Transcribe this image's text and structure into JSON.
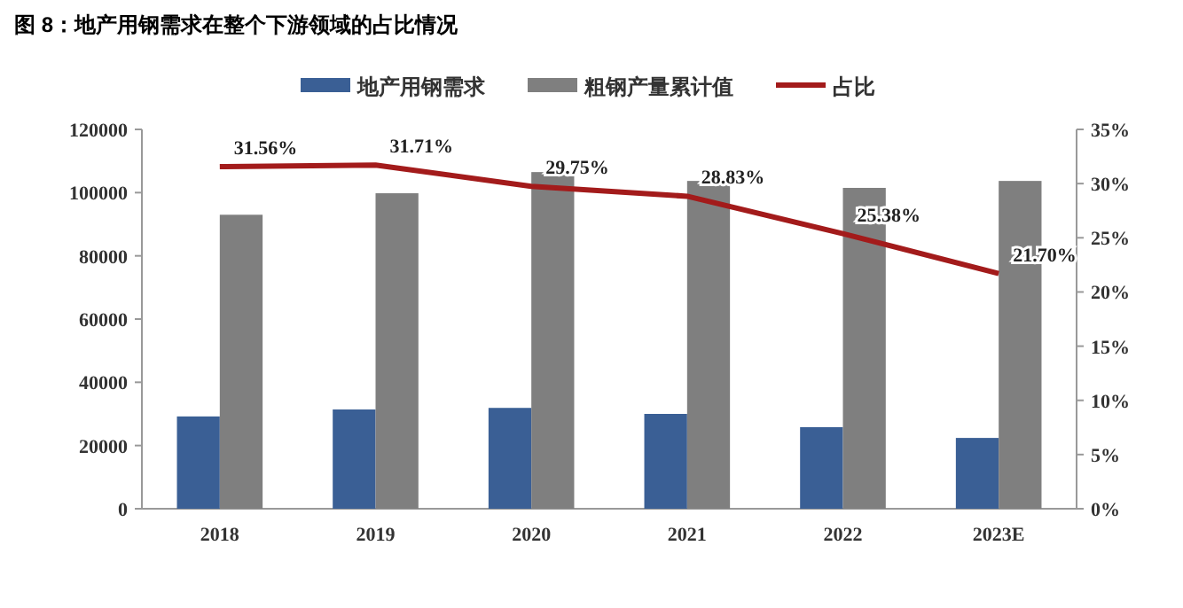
{
  "chart_data": {
    "type": "bar",
    "title": "图 8：地产用钢需求在整个下游领域的占比情况",
    "categories": [
      "2018",
      "2019",
      "2020",
      "2021",
      "2022",
      "2023E"
    ],
    "series": [
      {
        "name": "地产用钢需求",
        "color": "#3a5f95",
        "values": [
          29200,
          31400,
          31900,
          30000,
          25800,
          22400
        ]
      },
      {
        "name": "粗钢产量累计值",
        "color": "#7f7f7f",
        "values": [
          93000,
          99800,
          106500,
          103700,
          101500,
          103700
        ]
      },
      {
        "name": "占比",
        "type": "line",
        "axis": "y2",
        "color": "#a31b1b",
        "values": [
          31.56,
          31.71,
          29.75,
          28.83,
          25.38,
          21.7
        ],
        "value_labels": [
          "31.56%",
          "31.71%",
          "29.75%",
          "28.83%",
          "25.38%",
          "21.70%"
        ]
      }
    ],
    "ylim": [
      0,
      120000
    ],
    "yticks": [
      0,
      20000,
      40000,
      60000,
      80000,
      100000,
      120000
    ],
    "y2lim": [
      0,
      35
    ],
    "y2ticks": [
      {
        "value": 0,
        "label": "0%"
      },
      {
        "value": 5,
        "label": "5%"
      },
      {
        "value": 10,
        "label": "10%"
      },
      {
        "value": 15,
        "label": "15%"
      },
      {
        "value": 20,
        "label": "20%"
      },
      {
        "value": 25,
        "label": "25%"
      },
      {
        "value": 30,
        "label": "30%"
      },
      {
        "value": 35,
        "label": "35%"
      }
    ],
    "legend": "top",
    "grid": false,
    "marker": "none"
  }
}
